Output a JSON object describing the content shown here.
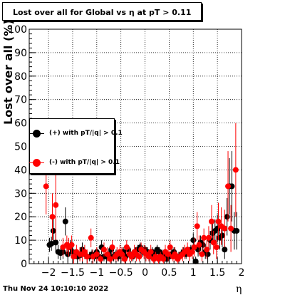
{
  "chart_data": {
    "type": "scatter",
    "title": "Lost over all for Global vs   η at pT > 0.11",
    "xlabel": "η",
    "ylabel": "Lost over all (%)",
    "xlim": [
      -2.4,
      2.0
    ],
    "ylim": [
      0,
      100
    ],
    "xticks": [
      -2,
      -1.5,
      -1,
      -0.5,
      0,
      0.5,
      1,
      1.5,
      2
    ],
    "xtick_labels": [
      "−2",
      "−1.5",
      "−1",
      "−0.5",
      "0",
      "0.5",
      "1",
      "1.5",
      "2"
    ],
    "yticks": [
      0,
      10,
      20,
      30,
      40,
      50,
      60,
      70,
      80,
      90,
      100
    ],
    "ytick_labels": [
      "0",
      "10",
      "20",
      "30",
      "40",
      "50",
      "60",
      "70",
      "80",
      "90",
      "100"
    ],
    "grid": true,
    "legend_position": "left-middle",
    "series": [
      {
        "name": "(+) with pT/|q| > 0.1",
        "color": "#000000",
        "points": [
          [
            -1.98,
            8,
            3
          ],
          [
            -1.94,
            8.5,
            3
          ],
          [
            -1.9,
            14,
            5
          ],
          [
            -1.85,
            9,
            4
          ],
          [
            -1.8,
            5,
            3
          ],
          [
            -1.75,
            4.5,
            3
          ],
          [
            -1.7,
            5,
            3
          ],
          [
            -1.65,
            18,
            6
          ],
          [
            -1.6,
            4,
            3
          ],
          [
            -1.55,
            7,
            3
          ],
          [
            -1.5,
            5,
            3
          ],
          [
            -1.45,
            4,
            2
          ],
          [
            -1.4,
            3,
            2
          ],
          [
            -1.35,
            3.5,
            2
          ],
          [
            -1.3,
            6,
            3
          ],
          [
            -1.25,
            4,
            2
          ],
          [
            -1.2,
            3,
            2
          ],
          [
            -1.15,
            3,
            2
          ],
          [
            -1.1,
            4,
            2
          ],
          [
            -1.05,
            3,
            2
          ],
          [
            -1.0,
            5,
            2
          ],
          [
            -0.95,
            3,
            2
          ],
          [
            -0.9,
            7,
            3
          ],
          [
            -0.85,
            3,
            2
          ],
          [
            -0.8,
            3,
            2
          ],
          [
            -0.75,
            4,
            2
          ],
          [
            -0.7,
            6,
            2
          ],
          [
            -0.65,
            3,
            2
          ],
          [
            -0.6,
            4,
            2
          ],
          [
            -0.55,
            3,
            2
          ],
          [
            -0.5,
            4,
            2
          ],
          [
            -0.45,
            5,
            2
          ],
          [
            -0.4,
            3,
            2
          ],
          [
            -0.35,
            6,
            2
          ],
          [
            -0.3,
            4,
            2
          ],
          [
            -0.25,
            3,
            2
          ],
          [
            -0.2,
            5,
            2
          ],
          [
            -0.15,
            6,
            2
          ],
          [
            -0.1,
            7,
            2
          ],
          [
            -0.05,
            5,
            2
          ],
          [
            0.0,
            6,
            2
          ],
          [
            0.05,
            5,
            2
          ],
          [
            0.1,
            3,
            2
          ],
          [
            0.15,
            5,
            2
          ],
          [
            0.2,
            4,
            2
          ],
          [
            0.25,
            6,
            2
          ],
          [
            0.3,
            5,
            2
          ],
          [
            0.35,
            4,
            2
          ],
          [
            0.4,
            3,
            2
          ],
          [
            0.45,
            2,
            2
          ],
          [
            0.5,
            3,
            2
          ],
          [
            0.55,
            4,
            2
          ],
          [
            0.6,
            5,
            2
          ],
          [
            0.65,
            3,
            2
          ],
          [
            0.7,
            3,
            2
          ],
          [
            0.75,
            4,
            2
          ],
          [
            0.8,
            5,
            2
          ],
          [
            0.85,
            4,
            2
          ],
          [
            0.9,
            5,
            2
          ],
          [
            0.95,
            6,
            2
          ],
          [
            1.0,
            10,
            3
          ],
          [
            1.05,
            1,
            2
          ],
          [
            1.1,
            6,
            3
          ],
          [
            1.15,
            9,
            3
          ],
          [
            1.2,
            8,
            3
          ],
          [
            1.25,
            5,
            3
          ],
          [
            1.3,
            4,
            3
          ],
          [
            1.35,
            10,
            4
          ],
          [
            1.4,
            13,
            5
          ],
          [
            1.45,
            14,
            5
          ],
          [
            1.5,
            15,
            6
          ],
          [
            1.55,
            11,
            5
          ],
          [
            1.6,
            12,
            5
          ],
          [
            1.65,
            6,
            4
          ],
          [
            1.7,
            20,
            8
          ],
          [
            1.75,
            33,
            12
          ],
          [
            1.8,
            33,
            15
          ],
          [
            1.85,
            14,
            8
          ],
          [
            1.9,
            14,
            8
          ]
        ]
      },
      {
        "name": "(-) with pT/|q| > 0.1",
        "color": "#ff0000",
        "points": [
          [
            -2.05,
            33,
            12
          ],
          [
            -1.92,
            20,
            10
          ],
          [
            -1.85,
            25,
            15
          ],
          [
            -1.7,
            7,
            4
          ],
          [
            -1.62,
            8,
            4
          ],
          [
            -1.58,
            7,
            4
          ],
          [
            -1.52,
            8,
            4
          ],
          [
            -1.48,
            3,
            3
          ],
          [
            -1.42,
            5,
            3
          ],
          [
            -1.35,
            4,
            3
          ],
          [
            -1.3,
            4,
            3
          ],
          [
            -1.25,
            5,
            3
          ],
          [
            -1.2,
            3,
            3
          ],
          [
            -1.12,
            11,
            4
          ],
          [
            -1.08,
            3,
            3
          ],
          [
            -1.0,
            4,
            3
          ],
          [
            -0.92,
            2,
            2
          ],
          [
            -0.85,
            6,
            3
          ],
          [
            -0.78,
            4,
            3
          ],
          [
            -0.72,
            2,
            2
          ],
          [
            -0.68,
            7,
            3
          ],
          [
            -0.62,
            3,
            2
          ],
          [
            -0.58,
            4,
            3
          ],
          [
            -0.52,
            5,
            3
          ],
          [
            -0.48,
            4,
            3
          ],
          [
            -0.42,
            2,
            2
          ],
          [
            -0.38,
            7,
            3
          ],
          [
            -0.32,
            4,
            3
          ],
          [
            -0.28,
            3,
            2
          ],
          [
            -0.22,
            5,
            3
          ],
          [
            -0.18,
            4,
            3
          ],
          [
            -0.12,
            3,
            2
          ],
          [
            -0.08,
            6,
            3
          ],
          [
            -0.02,
            5,
            3
          ],
          [
            0.02,
            4,
            3
          ],
          [
            0.08,
            3,
            2
          ],
          [
            0.12,
            5,
            3
          ],
          [
            0.18,
            2,
            2
          ],
          [
            0.22,
            3,
            2
          ],
          [
            0.28,
            2,
            2
          ],
          [
            0.32,
            3,
            2
          ],
          [
            0.38,
            2,
            2
          ],
          [
            0.42,
            5,
            3
          ],
          [
            0.48,
            4,
            3
          ],
          [
            0.52,
            7,
            3
          ],
          [
            0.58,
            3,
            2
          ],
          [
            0.62,
            4,
            3
          ],
          [
            0.68,
            2,
            2
          ],
          [
            0.72,
            3,
            2
          ],
          [
            0.78,
            4,
            3
          ],
          [
            0.82,
            5,
            3
          ],
          [
            0.88,
            6,
            3
          ],
          [
            0.92,
            4,
            3
          ],
          [
            0.98,
            5,
            3
          ],
          [
            1.02,
            7,
            4
          ],
          [
            1.08,
            16,
            6
          ],
          [
            1.12,
            8,
            4
          ],
          [
            1.18,
            4,
            3
          ],
          [
            1.22,
            11,
            4
          ],
          [
            1.28,
            6,
            4
          ],
          [
            1.32,
            11,
            5
          ],
          [
            1.38,
            18,
            7
          ],
          [
            1.42,
            9,
            5
          ],
          [
            1.48,
            7,
            5
          ],
          [
            1.52,
            18,
            8
          ],
          [
            1.58,
            16,
            8
          ],
          [
            1.65,
            15,
            8
          ],
          [
            1.72,
            33,
            15
          ],
          [
            1.78,
            15,
            10
          ],
          [
            1.88,
            40,
            20
          ]
        ]
      }
    ]
  },
  "footer": {
    "timestamp": "Thu Nov 24 10:10:10 2022"
  }
}
